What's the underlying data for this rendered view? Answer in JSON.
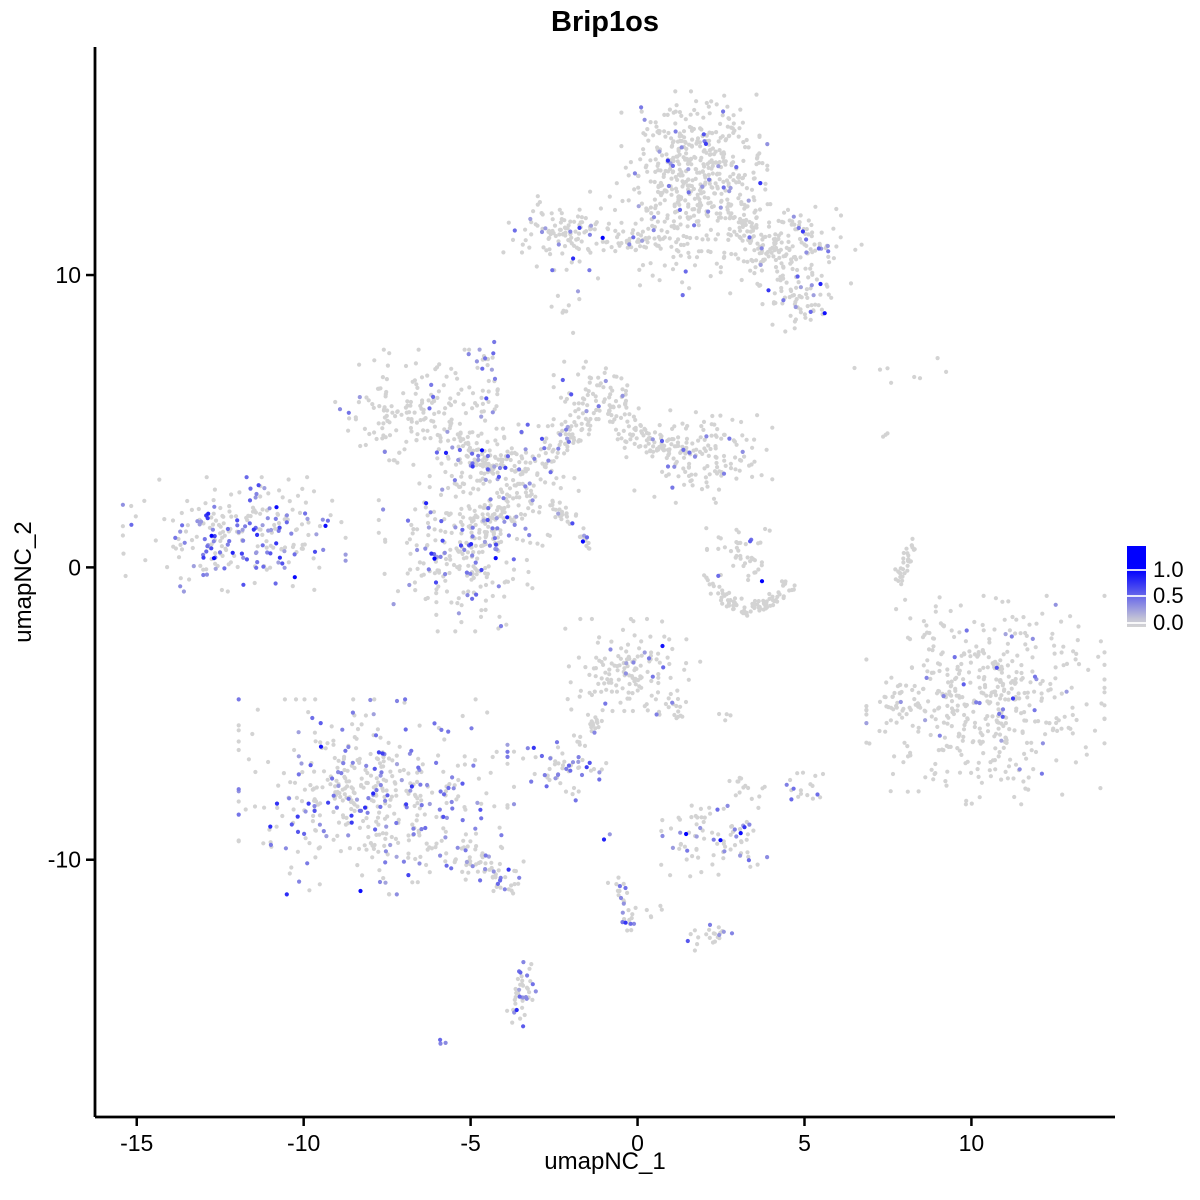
{
  "chart_data": {
    "type": "scatter",
    "title": "Brip1os",
    "xlabel": "umapNC_1",
    "ylabel": "umapNC_2",
    "xlim": [
      -16.25,
      14.3
    ],
    "ylim": [
      -18.8,
      17.8
    ],
    "x_ticks": [
      -15,
      -10,
      -5,
      0,
      5,
      10
    ],
    "y_ticks": [
      -10,
      0,
      10
    ],
    "grid": false,
    "point_radius": 2.1,
    "colors": {
      "low": "#D3D3D3",
      "high": "#0000FF",
      "background": "#FFFFFF",
      "axis": "#000000",
      "text": "#000000"
    },
    "legend": {
      "position": "right-middle",
      "labels": [
        "1.0",
        "0.5",
        "0.0"
      ],
      "values": [
        1.0,
        0.5,
        0.0
      ],
      "domain": [
        -0.08,
        1.45
      ]
    },
    "clusters": [
      {
        "name": "top-main",
        "type": "gauss",
        "cx": 1.7,
        "cy": 13.75,
        "sx": 0.95,
        "sy": 1.1,
        "n": 420,
        "frac": 0.055
      },
      {
        "name": "top-main-skirt",
        "type": "gauss",
        "cx": 1.55,
        "cy": 11.5,
        "sx": 1.45,
        "sy": 0.95,
        "n": 130,
        "frac": 0.07
      },
      {
        "name": "top-right-arm",
        "type": "line",
        "x1": 2.6,
        "y1": 12.2,
        "x2": 4.6,
        "y2": 10.2,
        "jitter": 0.45,
        "n": 110,
        "frac": 0.08
      },
      {
        "name": "top-right-blob-upper",
        "type": "gauss",
        "cx": 5.1,
        "cy": 11.2,
        "sx": 0.7,
        "sy": 0.55,
        "n": 70,
        "frac": 0.1
      },
      {
        "name": "top-right-blob-lower",
        "type": "gauss",
        "cx": 4.95,
        "cy": 9.35,
        "sx": 0.65,
        "sy": 0.6,
        "n": 80,
        "frac": 0.12
      },
      {
        "name": "top-left",
        "type": "gauss",
        "cx": -2.32,
        "cy": 11.43,
        "sx": 0.8,
        "sy": 0.55,
        "n": 110,
        "frac": 0.09
      },
      {
        "name": "top-bridge",
        "type": "line",
        "x1": -0.98,
        "y1": 11.09,
        "x2": 0.6,
        "y2": 11.23,
        "jitter": 0.22,
        "n": 35,
        "frac": 0.03
      },
      {
        "name": "left-mid",
        "type": "gauss",
        "cx": -12.08,
        "cy": 1.13,
        "sx": 1.45,
        "sy": 0.85,
        "n": 260,
        "frac": 0.38
      },
      {
        "name": "left-mid-dark",
        "type": "gauss",
        "cx": -11.4,
        "cy": 2.7,
        "sx": 0.15,
        "sy": 0.12,
        "n": 3,
        "frac": 0.9
      },
      {
        "name": "center-upper-left",
        "type": "gauss",
        "cx": -6.64,
        "cy": 5.26,
        "sx": 1.05,
        "sy": 0.95,
        "n": 170,
        "frac": 0.06
      },
      {
        "name": "center-arm1",
        "type": "line",
        "x1": -5.74,
        "y1": 4.4,
        "x2": -3.66,
        "y2": 3.04,
        "jitter": 0.3,
        "n": 80,
        "frac": 0.12
      },
      {
        "name": "center-node",
        "type": "gauss",
        "cx": -3.81,
        "cy": 3.04,
        "sx": 1.05,
        "sy": 1.0,
        "n": 200,
        "frac": 0.17
      },
      {
        "name": "center-node-lower",
        "type": "line",
        "x1": -4.26,
        "y1": 2.12,
        "x2": -4.7,
        "y2": 0.75,
        "jitter": 0.35,
        "n": 70,
        "frac": 0.2
      },
      {
        "name": "center-peak",
        "type": "gauss",
        "cx": -1.13,
        "cy": 5.77,
        "sx": 0.6,
        "sy": 0.55,
        "n": 90,
        "frac": 0.1
      },
      {
        "name": "center-arm2",
        "type": "line",
        "x1": -2.77,
        "y1": 3.82,
        "x2": -1.43,
        "y2": 5.19,
        "jitter": 0.25,
        "n": 50,
        "frac": 0.1
      },
      {
        "name": "center-shoulder",
        "type": "gauss",
        "cx": 1.85,
        "cy": 3.82,
        "sx": 0.95,
        "sy": 0.7,
        "n": 150,
        "frac": 0.06
      },
      {
        "name": "center-bridge2",
        "type": "line",
        "x1": -0.68,
        "y1": 4.85,
        "x2": 0.95,
        "y2": 4.16,
        "jitter": 0.3,
        "n": 60,
        "frac": 0.07
      },
      {
        "name": "center-lower",
        "type": "gauss",
        "cx": -5.45,
        "cy": 0.34,
        "sx": 1.0,
        "sy": 1.1,
        "n": 210,
        "frac": 0.17
      },
      {
        "name": "center-streak",
        "type": "line",
        "x1": -2.65,
        "y1": 2.12,
        "x2": -1.19,
        "y2": 0.55,
        "jitter": 0.1,
        "n": 30,
        "frac": 0.05
      },
      {
        "name": "mini-purple-blob",
        "type": "gauss",
        "cx": -4.55,
        "cy": 7.25,
        "sx": 0.22,
        "sy": 0.3,
        "n": 14,
        "frac": 0.6
      },
      {
        "name": "mini-strand",
        "type": "line",
        "x1": -4.28,
        "y1": 6.5,
        "x2": -4.55,
        "y2": 5.6,
        "jitter": 0.15,
        "n": 10,
        "frac": 0.15
      },
      {
        "name": "arc-blob",
        "type": "gauss",
        "cx": 3.21,
        "cy": 0.51,
        "sx": 0.5,
        "sy": 0.5,
        "n": 45,
        "frac": 0.05
      },
      {
        "name": "arc-smile",
        "type": "arc",
        "x1": 2.02,
        "y1": -0.34,
        "cx": 3.3,
        "cy": -2.3,
        "x2": 4.58,
        "y2": -0.58,
        "jitter": 0.13,
        "n": 85,
        "frac": 0.02
      },
      {
        "name": "right-sliver",
        "type": "line",
        "x1": 7.77,
        "y1": -0.58,
        "x2": 8.3,
        "y2": 0.96,
        "jitter": 0.09,
        "n": 32,
        "frac": 0.1
      },
      {
        "name": "sparse-topright",
        "type": "gauss",
        "cx": 8.4,
        "cy": 6.7,
        "sx": 1.3,
        "sy": 0.22,
        "n": 8,
        "frac": 0
      },
      {
        "name": "sparse-pair",
        "type": "gauss",
        "cx": 7.5,
        "cy": 4.74,
        "sx": 0.15,
        "sy": 0.18,
        "n": 3,
        "frac": 0
      },
      {
        "name": "right-big",
        "type": "gauss",
        "cx": 10.42,
        "cy": -4.54,
        "sx": 1.55,
        "sy": 1.55,
        "n": 480,
        "frac": 0.065
      },
      {
        "name": "right-satellite",
        "type": "gauss",
        "cx": 7.92,
        "cy": -4.74,
        "sx": 0.35,
        "sy": 0.42,
        "n": 30,
        "frac": 0.04
      },
      {
        "name": "bottomleft-big",
        "type": "gauss",
        "cx": -7.92,
        "cy": -7.85,
        "sx": 1.75,
        "sy": 1.45,
        "n": 470,
        "frac": 0.3
      },
      {
        "name": "bottomleft-tail",
        "type": "line",
        "x1": -5.65,
        "y1": -9.59,
        "x2": -3.63,
        "y2": -10.82,
        "jitter": 0.3,
        "n": 70,
        "frac": 0.25
      },
      {
        "name": "bottom-center",
        "type": "gauss",
        "cx": -0.3,
        "cy": -3.72,
        "sx": 0.95,
        "sy": 0.85,
        "n": 150,
        "frac": 0.08
      },
      {
        "name": "bottom-center-strand",
        "type": "line",
        "x1": -1.22,
        "y1": -5.15,
        "x2": -1.79,
        "y2": -6.14,
        "jitter": 0.13,
        "n": 20,
        "frac": 0.05
      },
      {
        "name": "bottom-center-arm",
        "type": "line",
        "x1": 0.51,
        "y1": -4.37,
        "x2": 1.34,
        "y2": -5.12,
        "jitter": 0.15,
        "n": 12,
        "frac": 0.05
      },
      {
        "name": "pair-right",
        "type": "gauss",
        "cx": 2.65,
        "cy": -5.09,
        "sx": 0.12,
        "sy": 0.12,
        "n": 4,
        "frac": 0
      },
      {
        "name": "purple-small",
        "type": "gauss",
        "cx": -2.32,
        "cy": -7.13,
        "sx": 0.6,
        "sy": 0.5,
        "n": 55,
        "frac": 0.45
      },
      {
        "name": "purple-single",
        "type": "gauss",
        "cx": -1.25,
        "cy": -7.07,
        "sx": 0.08,
        "sy": 0.08,
        "n": 2,
        "frac": 0.5
      },
      {
        "name": "gray-blob-mid",
        "type": "gauss",
        "cx": 3.33,
        "cy": -7.61,
        "sx": 0.25,
        "sy": 0.22,
        "n": 14,
        "frac": 0
      },
      {
        "name": "purple-blob-right",
        "type": "gauss",
        "cx": 4.91,
        "cy": -7.41,
        "sx": 0.28,
        "sy": 0.3,
        "n": 18,
        "frac": 0.3
      },
      {
        "name": "mid-bottom",
        "type": "gauss",
        "cx": 2.32,
        "cy": -9.25,
        "sx": 0.75,
        "sy": 0.62,
        "n": 85,
        "frac": 0.22
      },
      {
        "name": "lower-strand",
        "type": "line",
        "x1": -0.74,
        "y1": -10.38,
        "x2": -0.18,
        "y2": -12.29,
        "jitter": 0.13,
        "n": 28,
        "frac": 0.25
      },
      {
        "name": "lower-pair",
        "type": "gauss",
        "cx": 0.6,
        "cy": -11.71,
        "sx": 0.2,
        "sy": 0.12,
        "n": 5,
        "frac": 0
      },
      {
        "name": "single-purple-low",
        "type": "gauss",
        "cx": -0.83,
        "cy": -9.32,
        "sx": 0.1,
        "sy": 0.1,
        "n": 2,
        "frac": 0.5
      },
      {
        "name": "small-bottom",
        "type": "gauss",
        "cx": 2.14,
        "cy": -12.59,
        "sx": 0.3,
        "sy": 0.28,
        "n": 22,
        "frac": 0.2
      },
      {
        "name": "comma",
        "type": "line",
        "x1": -3.24,
        "y1": -13.62,
        "x2": -3.6,
        "y2": -15.53,
        "jitter": 0.16,
        "n": 42,
        "frac": 0.3
      },
      {
        "name": "tiny-pair",
        "type": "gauss",
        "cx": -5.89,
        "cy": -16.21,
        "sx": 0.1,
        "sy": 0.08,
        "n": 3,
        "frac": 0.7
      },
      {
        "name": "sparse-midtop",
        "type": "gauss",
        "cx": -2.2,
        "cy": 8.9,
        "sx": 0.25,
        "sy": 0.45,
        "n": 8,
        "frac": 0
      }
    ]
  }
}
